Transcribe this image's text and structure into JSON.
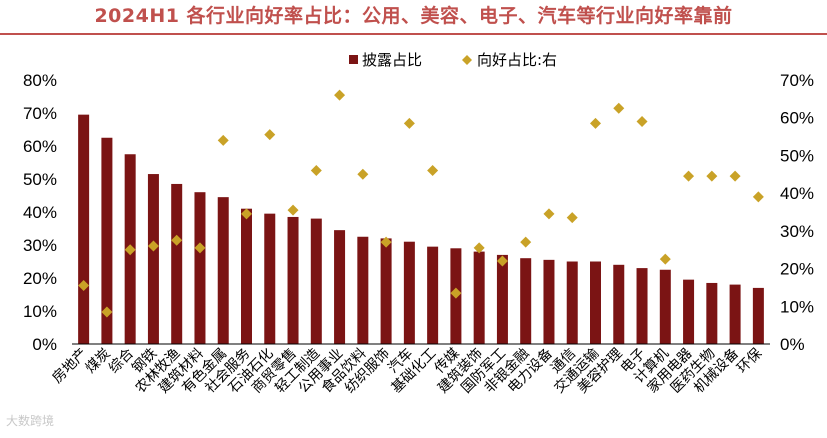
{
  "chart_data": {
    "type": "bar",
    "title": "2024H1 各行业向好率占比：公用、美容、电子、汽车等行业向好率靠前",
    "categories": [
      "房地产",
      "煤炭",
      "综合",
      "钢铁",
      "农林牧渔",
      "建筑材料",
      "有色金属",
      "社会服务",
      "石油石化",
      "商贸零售",
      "轻工制造",
      "公用事业",
      "食品饮料",
      "纺织服饰",
      "汽车",
      "基础化工",
      "传媒",
      "建筑装饰",
      "国防军工",
      "非银金融",
      "电力设备",
      "通信",
      "交通运输",
      "美容护理",
      "电子",
      "计算机",
      "家用电器",
      "医药生物",
      "机械设备",
      "环保"
    ],
    "series": [
      {
        "name": "披露占比",
        "type": "bar",
        "axis": "left",
        "color": "#7b1414",
        "values": [
          69.5,
          62.5,
          57.5,
          51.5,
          48.5,
          46,
          44.5,
          41,
          39.5,
          38.5,
          38,
          34.5,
          32.5,
          32,
          31,
          29.5,
          29,
          28,
          27,
          26,
          25.5,
          25,
          25,
          24,
          23,
          22.5,
          19.5,
          18.5,
          18,
          17
        ]
      },
      {
        "name": "向好占比:右",
        "type": "scatter",
        "axis": "right",
        "color": "#c9a227",
        "values": [
          15.5,
          8.5,
          25,
          26,
          27.5,
          25.5,
          54,
          34.5,
          55.5,
          35.5,
          46,
          66,
          45,
          27,
          58.5,
          46,
          13.5,
          25.5,
          22,
          27,
          34.5,
          33.5,
          58.5,
          62.5,
          59,
          22.5,
          44.5,
          44.5,
          44.5,
          39
        ]
      }
    ],
    "ylim_left": [
      0,
      80
    ],
    "ylim_right": [
      0,
      70
    ],
    "left_ticks": [
      "0%",
      "10%",
      "20%",
      "30%",
      "40%",
      "50%",
      "60%",
      "70%",
      "80%"
    ],
    "right_ticks": [
      "0%",
      "10%",
      "20%",
      "30%",
      "40%",
      "50%",
      "60%",
      "70%"
    ],
    "legend_position": "top-center",
    "grid": false
  },
  "watermark": "大数跨境"
}
